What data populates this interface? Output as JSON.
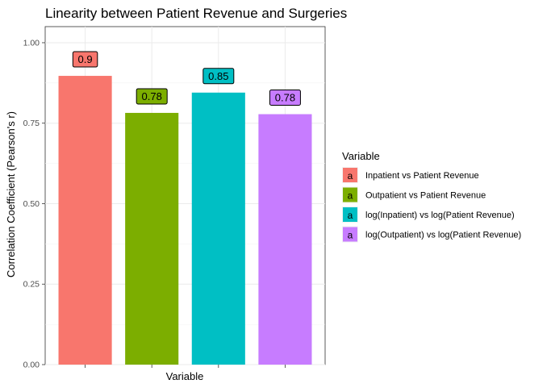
{
  "chart_data": {
    "type": "bar",
    "title": "Linearity between Patient Revenue and Surgeries",
    "xlabel": "Variable",
    "ylabel": "Correlation Coefficient (Pearson's r)",
    "ylim": [
      0,
      1.05
    ],
    "yticks": [
      "0.00",
      "0.25",
      "0.50",
      "0.75",
      "1.00"
    ],
    "ytick_values": [
      0,
      0.25,
      0.5,
      0.75,
      1.0
    ],
    "grid": true,
    "x_tick_labels_visible": false,
    "categories": [
      "Inpatient vs Patient Revenue",
      "Outpatient vs Patient Revenue",
      "log(Inpatient) vs log(Patient Revenue)",
      "log(Outpatient) vs log(Patient Revenue)"
    ],
    "values": [
      0.897,
      0.782,
      0.845,
      0.778
    ],
    "data_labels": [
      "0.9",
      "0.78",
      "0.85",
      "0.78"
    ],
    "colors": [
      "#F8766D",
      "#7CAE00",
      "#00BFC4",
      "#C77CFF"
    ],
    "legend": {
      "title": "Variable",
      "placement": "right",
      "key_glyph": "a"
    }
  }
}
